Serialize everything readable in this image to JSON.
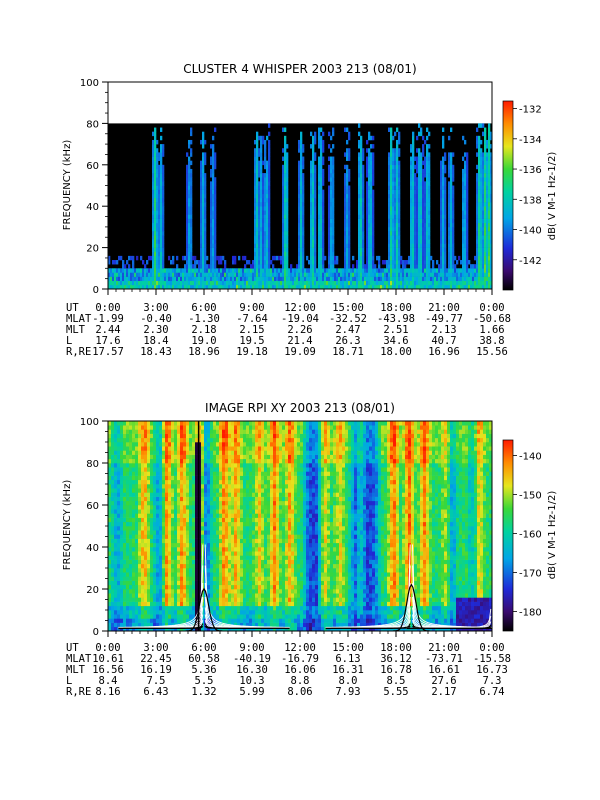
{
  "chart_data": [
    {
      "type": "heatmap",
      "title": "CLUSTER 4 WHISPER 2003 213 (08/01)",
      "ylabel": "FREQUENCY (kHz)",
      "ylim": [
        0,
        100
      ],
      "yticks": [
        "0",
        "20",
        "40",
        "60",
        "80",
        "100"
      ],
      "xticks": [
        "0:00",
        "3:00",
        "6:00",
        "9:00",
        "12:00",
        "15:00",
        "18:00",
        "21:00",
        "0:00"
      ],
      "data_max_frequency_khz": 80,
      "colorbar": {
        "label": "dB( V M⁻¹ Hz⁻¹ᐟ²)",
        "label_text": "dB( V M-1 Hz-1/2)",
        "range": [
          -144,
          -131.5
        ],
        "ticks": [
          "-132",
          "-134",
          "-136",
          "-138",
          "-140",
          "-142"
        ],
        "colormap": "rainbow"
      },
      "ephemeris": {
        "rows": [
          {
            "label": "UT",
            "values": [
              "0:00",
              "3:00",
              "6:00",
              "9:00",
              "12:00",
              "15:00",
              "18:00",
              "21:00",
              "0:00"
            ]
          },
          {
            "label": "MLAT",
            "values": [
              "-1.99",
              "-0.40",
              "-1.30",
              "-7.64",
              "-19.04",
              "-32.52",
              "-43.98",
              "-49.77",
              "-50.68"
            ]
          },
          {
            "label": "MLT",
            "values": [
              "2.44",
              "2.30",
              "2.18",
              "2.15",
              "2.26",
              "2.47",
              "2.51",
              "2.13",
              "1.66"
            ]
          },
          {
            "label": "L",
            "values": [
              "17.6",
              "18.4",
              "19.0",
              "19.5",
              "21.4",
              "26.3",
              "34.6",
              "40.7",
              "38.8"
            ]
          },
          {
            "label": "R,RE",
            "values": [
              "17.57",
              "18.43",
              "18.96",
              "19.18",
              "19.09",
              "18.71",
              "18.00",
              "16.96",
              "15.56"
            ]
          }
        ]
      }
    },
    {
      "type": "heatmap",
      "title": "IMAGE RPI XY 2003 213 (08/01)",
      "ylabel": "FREQUENCY (kHz)",
      "ylim": [
        0,
        100
      ],
      "yticks": [
        "0",
        "20",
        "40",
        "60",
        "80",
        "100"
      ],
      "xticks": [
        "0:00",
        "3:00",
        "6:00",
        "9:00",
        "12:00",
        "15:00",
        "18:00",
        "21:00",
        "0:00"
      ],
      "overlays": [
        "white plasma-frequency curves",
        "black plasma-frequency curves"
      ],
      "colorbar": {
        "label_text": "dB( V M-1 Hz-1/2)",
        "range": [
          -185,
          -136
        ],
        "ticks": [
          "-140",
          "-150",
          "-160",
          "-170",
          "-180"
        ],
        "colormap": "rainbow"
      },
      "ephemeris": {
        "rows": [
          {
            "label": "UT",
            "values": [
              "0:00",
              "3:00",
              "6:00",
              "9:00",
              "12:00",
              "15:00",
              "18:00",
              "21:00",
              "0:00"
            ]
          },
          {
            "label": "MLAT",
            "values": [
              "10.61",
              "22.45",
              "60.58",
              "-40.19",
              "-16.79",
              "6.13",
              "36.12",
              "-73.71",
              "-15.58"
            ]
          },
          {
            "label": "MLT",
            "values": [
              "16.56",
              "16.19",
              "5.36",
              "16.30",
              "16.06",
              "16.31",
              "16.78",
              "16.61",
              "16.73"
            ]
          },
          {
            "label": "L",
            "values": [
              "8.4",
              "7.5",
              "5.5",
              "10.3",
              "8.8",
              "8.0",
              "8.5",
              "27.6",
              "7.3"
            ]
          },
          {
            "label": "R,RE",
            "values": [
              "8.16",
              "6.43",
              "1.32",
              "5.99",
              "8.06",
              "7.93",
              "5.55",
              "2.17",
              "6.74"
            ]
          }
        ]
      }
    }
  ]
}
